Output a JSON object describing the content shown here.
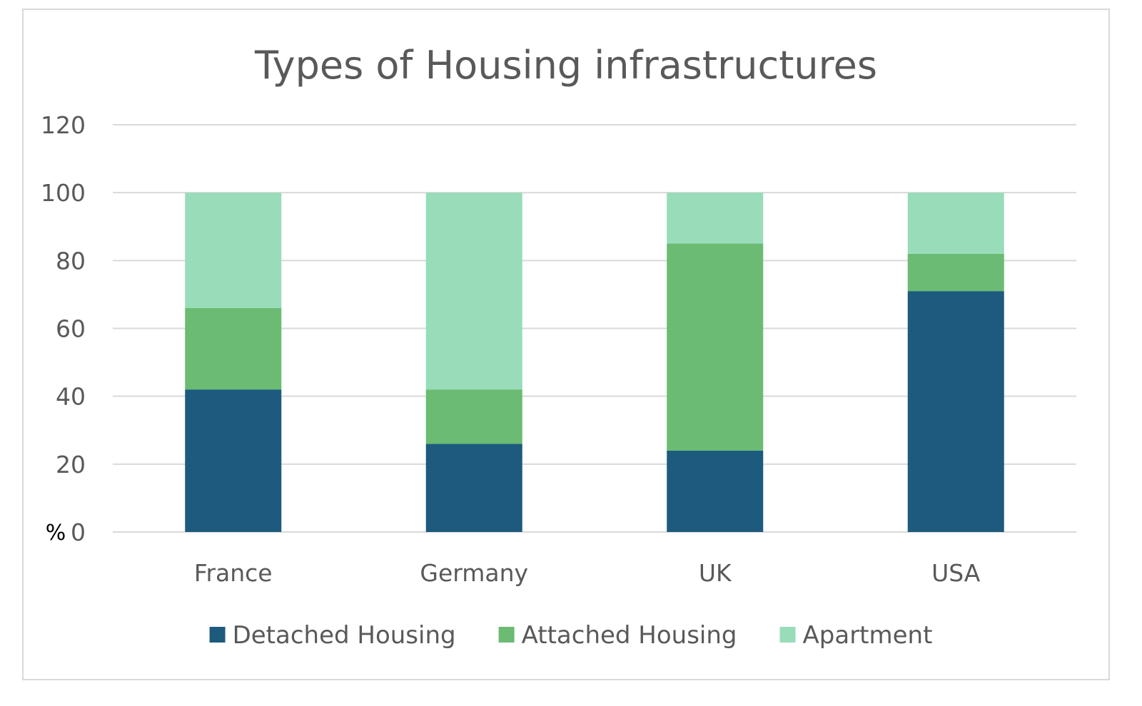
{
  "chart_data": {
    "type": "bar",
    "stacked": true,
    "title": "Types of Housing infrastructures",
    "ylabel": "%",
    "xlabel": "",
    "ylim": [
      0,
      120
    ],
    "yticks": [
      0,
      20,
      40,
      60,
      80,
      100,
      120
    ],
    "grid": true,
    "legend_position": "bottom",
    "categories": [
      "France",
      "Germany",
      "UK",
      "USA"
    ],
    "series": [
      {
        "name": "Detached Housing",
        "color": "#1d5a7d",
        "values": [
          42,
          26,
          24,
          71
        ]
      },
      {
        "name": "Attached Housing",
        "color": "#6bbb73",
        "values": [
          24,
          16,
          61,
          11
        ]
      },
      {
        "name": "Apartment",
        "color": "#98dcb9",
        "values": [
          34,
          58,
          15,
          18
        ]
      }
    ]
  }
}
